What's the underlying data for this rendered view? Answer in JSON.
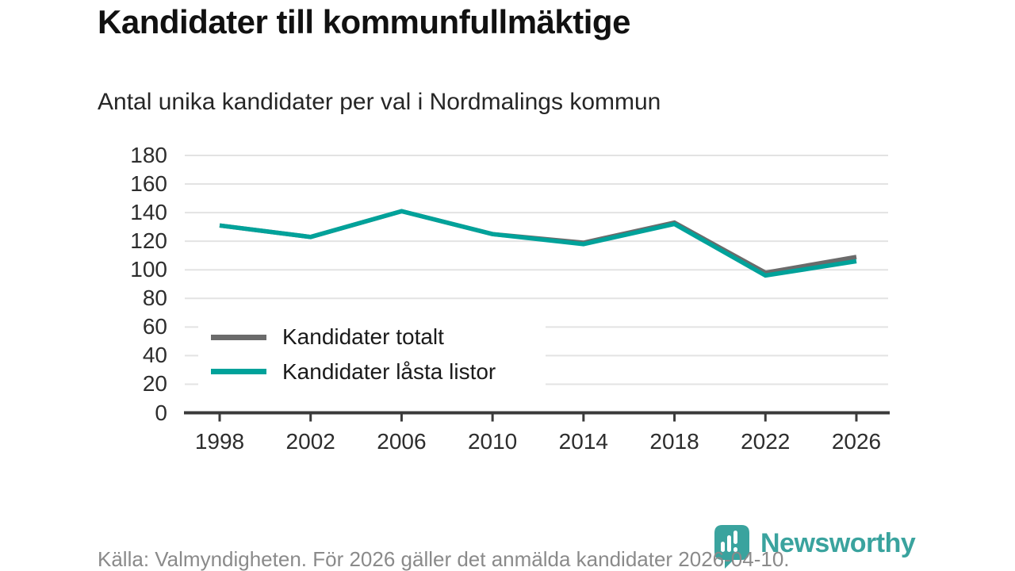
{
  "header": {
    "title": "Kandidater till kommunfullmäktige",
    "subtitle": "Antal unika kandidater per val i Nordmalings kommun"
  },
  "chart_data": {
    "type": "line",
    "title": "Kandidater till kommunfullmäktige",
    "subtitle": "Antal unika kandidater per val i Nordmalings kommun",
    "categories": [
      "1998",
      "2002",
      "2006",
      "2010",
      "2014",
      "2018",
      "2022",
      "2026"
    ],
    "series": [
      {
        "name": "Kandidater totalt",
        "color": "#6b6b6b",
        "values": [
          131,
          123,
          141,
          125,
          119,
          133,
          98,
          109
        ]
      },
      {
        "name": "Kandidater låsta listor",
        "color": "#00a29a",
        "values": [
          131,
          123,
          141,
          125,
          118,
          132,
          96,
          106
        ]
      }
    ],
    "xlabel": "",
    "ylabel": "",
    "ylim": [
      0,
      180
    ],
    "yticks": [
      0,
      20,
      40,
      60,
      80,
      100,
      120,
      140,
      160,
      180
    ],
    "grid": true,
    "legend_position": "inside-middle-left",
    "gridline_color": "#e3e3e3",
    "axis_color": "#3a3a3a"
  },
  "footer": {
    "source": "Källa: Valmyndigheten. För 2026 gäller det anmälda kandidater 2026-04-10."
  },
  "logo": {
    "text": "Newsworthy",
    "icon": "newsworthy-speech-bubble-bars-icon",
    "color": "#3aa39e"
  }
}
